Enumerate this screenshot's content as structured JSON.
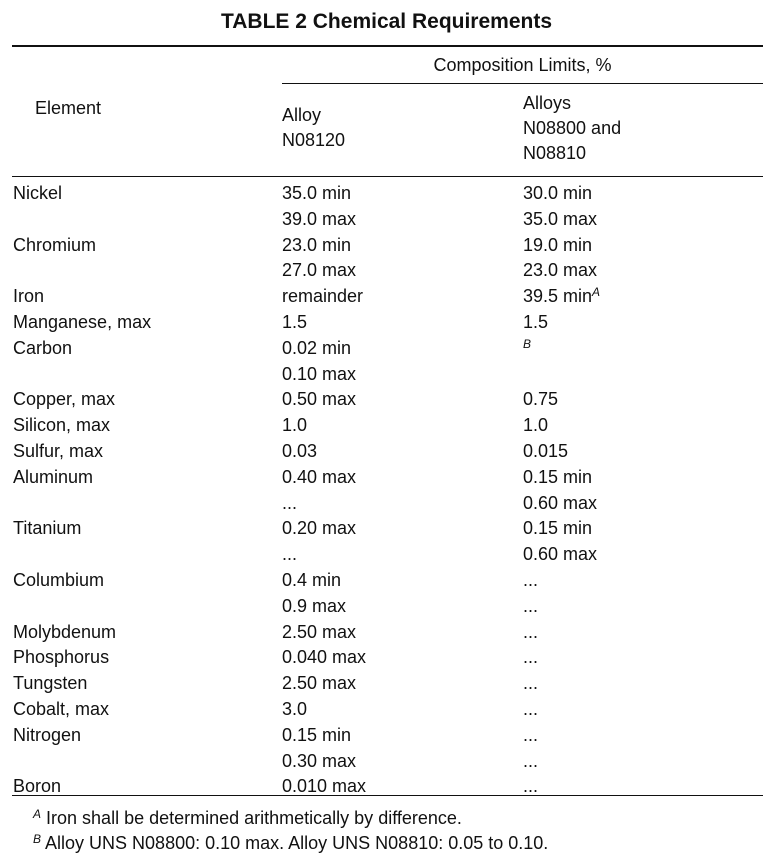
{
  "title": "TABLE 2 Chemical Requirements",
  "header": {
    "element": "Element",
    "group": "Composition Limits, %",
    "columns": [
      [
        "Alloy",
        "N08120"
      ],
      [
        "Alloys",
        "N08800 and",
        "N08810"
      ]
    ]
  },
  "table": {
    "rows": [
      {
        "element": "Nickel",
        "cells": [
          [
            "35.0 min",
            "39.0 max"
          ],
          [
            "30.0 min",
            "35.0 max"
          ]
        ]
      },
      {
        "element": "Chromium",
        "cells": [
          [
            "23.0 min",
            "27.0 max"
          ],
          [
            "19.0 min",
            "23.0 max"
          ]
        ]
      },
      {
        "element": "Iron",
        "cells": [
          [
            "remainder"
          ],
          [
            {
              "text": "39.5 min",
              "sup": "A"
            }
          ]
        ]
      },
      {
        "element": "Manganese, max",
        "cells": [
          [
            "1.5"
          ],
          [
            "1.5"
          ]
        ]
      },
      {
        "element": "Carbon",
        "cells": [
          [
            "0.02 min",
            "0.10 max"
          ],
          [
            {
              "sup": "B"
            }
          ]
        ]
      },
      {
        "element": "Copper, max",
        "cells": [
          [
            "0.50 max"
          ],
          [
            "0.75"
          ]
        ]
      },
      {
        "element": "Silicon, max",
        "cells": [
          [
            "1.0"
          ],
          [
            "1.0"
          ]
        ]
      },
      {
        "element": "Sulfur, max",
        "cells": [
          [
            "0.03"
          ],
          [
            "0.015"
          ]
        ]
      },
      {
        "element": "Aluminum",
        "cells": [
          [
            "0.40 max",
            "..."
          ],
          [
            "0.15 min",
            "0.60 max"
          ]
        ]
      },
      {
        "element": "Titanium",
        "cells": [
          [
            "0.20 max",
            "..."
          ],
          [
            "0.15 min",
            "0.60 max"
          ]
        ]
      },
      {
        "element": "Columbium",
        "cells": [
          [
            "0.4 min",
            "0.9 max"
          ],
          [
            "...",
            "..."
          ]
        ]
      },
      {
        "element": "Molybdenum",
        "cells": [
          [
            "2.50 max"
          ],
          [
            "..."
          ]
        ]
      },
      {
        "element": "Phosphorus",
        "cells": [
          [
            "0.040 max"
          ],
          [
            "..."
          ]
        ]
      },
      {
        "element": "Tungsten",
        "cells": [
          [
            "2.50 max"
          ],
          [
            "..."
          ]
        ]
      },
      {
        "element": "Cobalt, max",
        "cells": [
          [
            "3.0"
          ],
          [
            "..."
          ]
        ]
      },
      {
        "element": "Nitrogen",
        "cells": [
          [
            "0.15 min",
            "0.30 max"
          ],
          [
            "...",
            "..."
          ]
        ]
      },
      {
        "element": "Boron",
        "cells": [
          [
            "0.010 max"
          ],
          [
            "..."
          ]
        ]
      }
    ]
  },
  "footnotes": [
    {
      "mark": "A",
      "text": "Iron shall be determined arithmetically by difference."
    },
    {
      "mark": "B",
      "text": "Alloy UNS N08800: 0.10 max. Alloy UNS N08810: 0.05 to 0.10."
    }
  ]
}
